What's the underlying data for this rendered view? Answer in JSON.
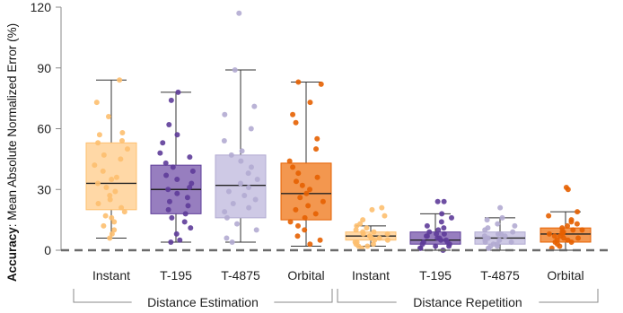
{
  "chart_data": {
    "type": "box",
    "ylabel_bold": "Accuracy",
    "ylabel_rest": ": Mean Absolute Normalized Error (%)",
    "ylim": [
      0,
      120
    ],
    "yticks": [
      0,
      30,
      60,
      90,
      120
    ],
    "grid": false,
    "baseline_style": "dashed",
    "groups": [
      {
        "label": "Distance Estimation",
        "categories": [
          "Instant",
          "T-195",
          "T-4875",
          "Orbital"
        ]
      },
      {
        "label": "Distance Repetition",
        "categories": [
          "Instant",
          "T-195",
          "T-4875",
          "Orbital"
        ]
      }
    ],
    "boxes": [
      {
        "category": "Instant",
        "group": "Distance Estimation",
        "color": "#FDBF6F",
        "fill": "#FFD49C",
        "min": 6,
        "q1": 20,
        "median": 33,
        "q3": 53,
        "max": 84,
        "points": [
          84,
          73,
          66,
          58,
          57,
          54,
          53,
          50,
          47,
          45,
          42,
          39,
          36,
          35,
          33,
          31,
          29,
          27,
          25,
          23,
          21,
          19,
          17,
          16,
          14,
          12,
          10,
          8,
          6
        ]
      },
      {
        "category": "T-195",
        "group": "Distance Estimation",
        "color": "#5E3C99",
        "fill": "#8C70B8",
        "min": 4,
        "q1": 18,
        "median": 30,
        "q3": 42,
        "max": 78,
        "points": [
          78,
          74,
          62,
          57,
          53,
          48,
          46,
          43,
          41,
          39,
          37,
          35,
          33,
          31,
          30,
          28,
          26,
          24,
          22,
          20,
          18,
          16,
          14,
          11,
          8,
          5,
          4
        ]
      },
      {
        "category": "T-4875",
        "group": "Distance Estimation",
        "color": "#B2ABD2",
        "fill": "#C9C3E2",
        "min": 4,
        "q1": 16,
        "median": 32,
        "q3": 47,
        "max": 89,
        "points": [
          117,
          89,
          71,
          67,
          60,
          54,
          49,
          47,
          44,
          41,
          38,
          35,
          33,
          31,
          29,
          27,
          25,
          23,
          21,
          19,
          16,
          13,
          10,
          6,
          4
        ]
      },
      {
        "category": "Orbital",
        "group": "Distance Estimation",
        "color": "#E66101",
        "fill": "#F28C3C",
        "min": 2,
        "q1": 15,
        "median": 28,
        "q3": 43,
        "max": 83,
        "points": [
          83,
          82,
          73,
          67,
          63,
          55,
          50,
          44,
          41,
          38,
          36,
          34,
          32,
          30,
          28,
          26,
          24,
          22,
          20,
          18,
          16,
          14,
          12,
          10,
          7,
          5,
          3
        ]
      },
      {
        "category": "Instant",
        "group": "Distance Repetition",
        "color": "#FDBF6F",
        "fill": "#FFD49C",
        "min": 2,
        "q1": 5,
        "median": 7,
        "q3": 9,
        "max": 12,
        "points": [
          21,
          20,
          17,
          15,
          13,
          12,
          11,
          10,
          9,
          9,
          8,
          8,
          7,
          7,
          6,
          6,
          5,
          5,
          4,
          4,
          3,
          3,
          2,
          2,
          1
        ]
      },
      {
        "category": "T-195",
        "group": "Distance Repetition",
        "color": "#5E3C99",
        "fill": "#8C70B8",
        "min": 0,
        "q1": 3,
        "median": 5,
        "q3": 9,
        "max": 18,
        "points": [
          24,
          24,
          18,
          16,
          14,
          12,
          11,
          10,
          9,
          8,
          8,
          7,
          7,
          6,
          6,
          5,
          5,
          4,
          4,
          3,
          3,
          2,
          2,
          1,
          1,
          0
        ]
      },
      {
        "category": "T-4875",
        "group": "Distance Repetition",
        "color": "#B2ABD2",
        "fill": "#C9C3E2",
        "min": 0,
        "q1": 3,
        "median": 6,
        "q3": 9,
        "max": 16,
        "points": [
          21,
          16,
          15,
          13,
          12,
          11,
          10,
          9,
          8,
          8,
          7,
          7,
          6,
          6,
          5,
          5,
          4,
          4,
          3,
          3,
          2,
          2,
          1,
          1
        ]
      },
      {
        "category": "Orbital",
        "group": "Distance Repetition",
        "color": "#E66101",
        "fill": "#F28C3C",
        "min": 0,
        "q1": 4,
        "median": 8,
        "q3": 11,
        "max": 19,
        "points": [
          31,
          30,
          19,
          17,
          15,
          14,
          13,
          12,
          11,
          10,
          10,
          9,
          9,
          8,
          8,
          7,
          7,
          6,
          6,
          5,
          5,
          4,
          4,
          3,
          2,
          1
        ]
      }
    ]
  }
}
